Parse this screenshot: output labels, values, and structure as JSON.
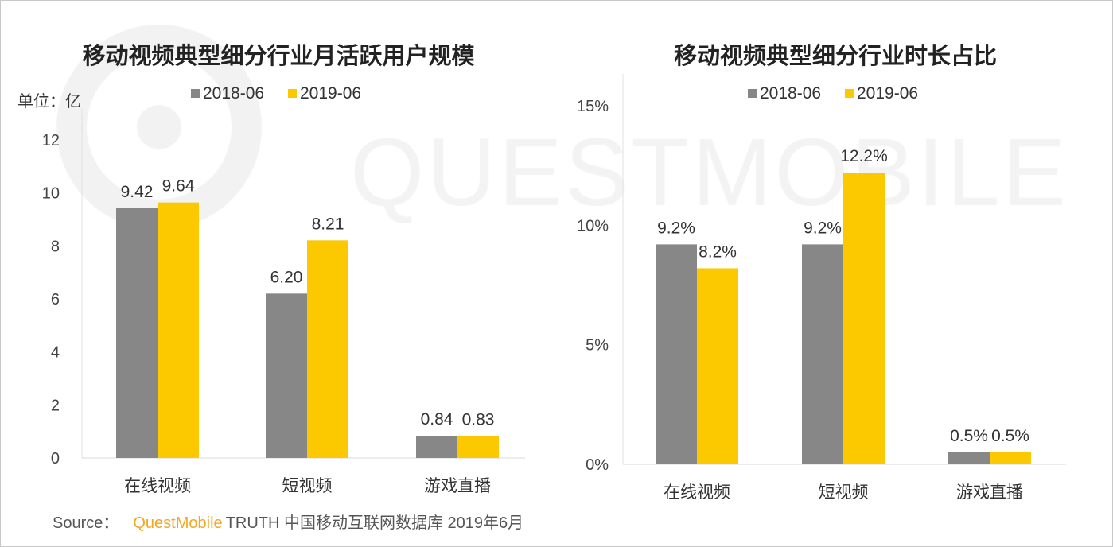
{
  "watermark": "QUESTMOBILE",
  "colors": {
    "s2018": "#878787",
    "s2019": "#fcc800"
  },
  "chart_data": [
    {
      "type": "bar",
      "title": "移动视频典型细分行业月活跃用户规模",
      "unit_label": "单位：亿",
      "categories": [
        "在线视频",
        "短视频",
        "游戏直播"
      ],
      "series": [
        {
          "name": "2018-06",
          "values": [
            9.42,
            6.2,
            0.84
          ],
          "labels": [
            "9.42",
            "6.20",
            "0.84"
          ]
        },
        {
          "name": "2019-06",
          "values": [
            9.64,
            8.21,
            0.83
          ],
          "labels": [
            "9.64",
            "8.21",
            "0.83"
          ]
        }
      ],
      "yticks": [
        "0",
        "2",
        "4",
        "6",
        "8",
        "10",
        "12"
      ],
      "ylim": [
        0,
        12
      ],
      "legend": "top"
    },
    {
      "type": "bar",
      "title": "移动视频典型细分行业时长占比",
      "categories": [
        "在线视频",
        "短视频",
        "游戏直播"
      ],
      "series": [
        {
          "name": "2018-06",
          "values": [
            9.2,
            9.2,
            0.5
          ],
          "labels": [
            "9.2%",
            "9.2%",
            "0.5%"
          ]
        },
        {
          "name": "2019-06",
          "values": [
            8.2,
            12.2,
            0.5
          ],
          "labels": [
            "8.2%",
            "12.2%",
            "0.5%"
          ]
        }
      ],
      "yticks": [
        "0%",
        "5%",
        "10%",
        "15%"
      ],
      "ylim": [
        0,
        15
      ],
      "legend": "top"
    }
  ],
  "source": {
    "prefix": "Source：",
    "brand": "QuestMobile",
    "rest": "TRUTH 中国移动互联网数据库 2019年6月"
  }
}
